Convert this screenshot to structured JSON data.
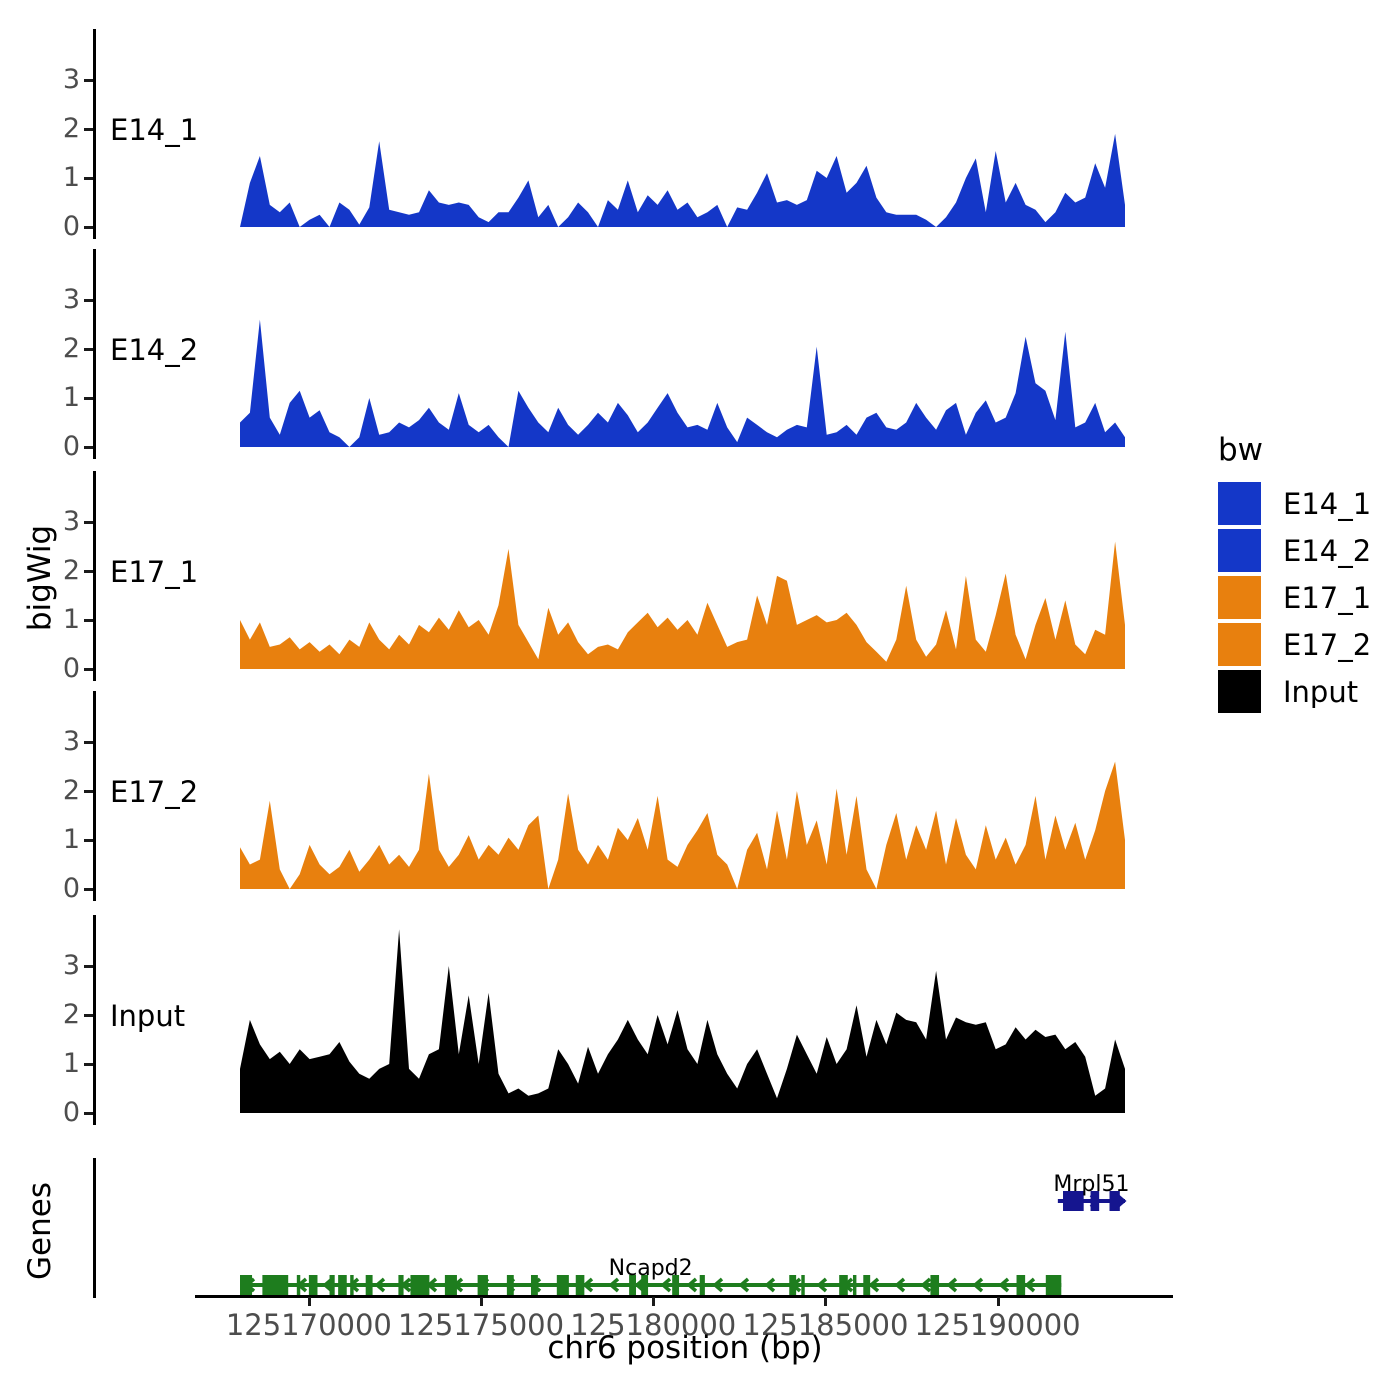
{
  "y_axis_title": "bigWig",
  "genes_axis_title": "Genes",
  "x_axis": {
    "title": "chr6 position (bp)",
    "ticks": [
      {
        "pos": 125170000,
        "label": "125170000"
      },
      {
        "pos": 125175000,
        "label": "125175000"
      },
      {
        "pos": 125180000,
        "label": "125180000"
      },
      {
        "pos": 125185000,
        "label": "125185000"
      },
      {
        "pos": 125190000,
        "label": "125190000"
      }
    ]
  },
  "legend": {
    "title": "bw",
    "entries": [
      {
        "label": "E14_1",
        "color": "#1437C8"
      },
      {
        "label": "E14_2",
        "color": "#1437C8"
      },
      {
        "label": "E17_1",
        "color": "#E8800E"
      },
      {
        "label": "E17_2",
        "color": "#E8800E"
      },
      {
        "label": "Input",
        "color": "#000000"
      }
    ]
  },
  "chart_data": {
    "type": "area",
    "region": {
      "chrom": "chr6",
      "start": 125168000,
      "end": 125193700
    },
    "ylim": [
      0,
      4
    ],
    "y_ticks": [
      0,
      1,
      2,
      3
    ],
    "grid": false,
    "legend_position": "right",
    "series": [
      {
        "name": "E14_1",
        "color": "#1437C8",
        "values": [
          0,
          0.9,
          1.45,
          0.45,
          0.3,
          0.5,
          0,
          0.15,
          0.25,
          0,
          0.5,
          0.35,
          0.05,
          0.4,
          1.75,
          0.35,
          0.3,
          0.25,
          0.3,
          0.75,
          0.5,
          0.45,
          0.5,
          0.45,
          0.2,
          0.1,
          0.3,
          0.3,
          0.6,
          0.95,
          0.2,
          0.45,
          0,
          0.2,
          0.5,
          0.3,
          0,
          0.55,
          0.35,
          0.95,
          0.3,
          0.65,
          0.45,
          0.75,
          0.35,
          0.5,
          0.2,
          0.3,
          0.45,
          0,
          0.4,
          0.35,
          0.7,
          1.1,
          0.5,
          0.55,
          0.45,
          0.55,
          1.15,
          1.0,
          1.45,
          0.7,
          0.9,
          1.25,
          0.6,
          0.3,
          0.25,
          0.25,
          0.25,
          0.15,
          0,
          0.2,
          0.5,
          1.0,
          1.4,
          0.3,
          1.55,
          0.5,
          0.9,
          0.45,
          0.35,
          0.1,
          0.3,
          0.7,
          0.5,
          0.6,
          1.3,
          0.8,
          1.9,
          0.45
        ]
      },
      {
        "name": "E14_2",
        "color": "#1437C8",
        "values": [
          0.5,
          0.7,
          2.6,
          0.6,
          0.25,
          0.9,
          1.15,
          0.6,
          0.75,
          0.3,
          0.2,
          0,
          0.2,
          1.0,
          0.25,
          0.3,
          0.5,
          0.4,
          0.55,
          0.8,
          0.5,
          0.35,
          1.1,
          0.45,
          0.3,
          0.45,
          0.2,
          0,
          1.15,
          0.8,
          0.5,
          0.3,
          0.8,
          0.45,
          0.25,
          0.45,
          0.7,
          0.5,
          0.9,
          0.65,
          0.3,
          0.5,
          0.8,
          1.1,
          0.7,
          0.4,
          0.45,
          0.35,
          0.9,
          0.4,
          0.1,
          0.6,
          0.45,
          0.3,
          0.2,
          0.35,
          0.45,
          0.4,
          2.05,
          0.25,
          0.3,
          0.45,
          0.25,
          0.6,
          0.7,
          0.4,
          0.35,
          0.5,
          0.9,
          0.6,
          0.35,
          0.75,
          0.9,
          0.25,
          0.7,
          0.95,
          0.5,
          0.6,
          1.1,
          2.25,
          1.3,
          1.15,
          0.55,
          2.35,
          0.4,
          0.5,
          0.9,
          0.3,
          0.5,
          0.2
        ]
      },
      {
        "name": "E17_1",
        "color": "#E8800E",
        "values": [
          1.0,
          0.6,
          0.95,
          0.45,
          0.5,
          0.65,
          0.4,
          0.55,
          0.35,
          0.5,
          0.3,
          0.6,
          0.45,
          0.95,
          0.6,
          0.4,
          0.7,
          0.5,
          0.9,
          0.75,
          1.05,
          0.8,
          1.2,
          0.85,
          1.0,
          0.7,
          1.3,
          2.45,
          0.9,
          0.55,
          0.2,
          1.25,
          0.7,
          0.95,
          0.55,
          0.3,
          0.45,
          0.5,
          0.4,
          0.75,
          0.95,
          1.15,
          0.85,
          1.05,
          0.8,
          1.0,
          0.7,
          1.35,
          0.9,
          0.45,
          0.55,
          0.6,
          1.5,
          0.9,
          1.9,
          1.8,
          0.9,
          1.0,
          1.1,
          0.95,
          1.0,
          1.15,
          0.9,
          0.55,
          0.35,
          0.15,
          0.6,
          1.7,
          0.6,
          0.25,
          0.5,
          1.2,
          0.4,
          1.9,
          0.6,
          0.35,
          1.1,
          1.95,
          0.7,
          0.2,
          0.9,
          1.45,
          0.6,
          1.4,
          0.5,
          0.3,
          0.8,
          0.7,
          2.6,
          0.9
        ]
      },
      {
        "name": "E17_2",
        "color": "#E8800E",
        "values": [
          0.85,
          0.5,
          0.6,
          1.8,
          0.4,
          0,
          0.3,
          0.9,
          0.5,
          0.3,
          0.45,
          0.8,
          0.35,
          0.6,
          0.9,
          0.5,
          0.7,
          0.45,
          0.8,
          2.35,
          0.8,
          0.45,
          0.7,
          1.1,
          0.6,
          0.9,
          0.7,
          1.05,
          0.8,
          1.3,
          1.5,
          0,
          0.6,
          1.95,
          0.8,
          0.5,
          0.9,
          0.6,
          1.25,
          1.0,
          1.45,
          0.8,
          1.9,
          0.6,
          0.45,
          0.9,
          1.2,
          1.55,
          0.7,
          0.5,
          0,
          0.8,
          1.15,
          0.4,
          1.6,
          0.6,
          2.0,
          0.9,
          1.4,
          0.5,
          2.05,
          0.7,
          1.9,
          0.4,
          0,
          0.9,
          1.55,
          0.6,
          1.3,
          0.8,
          1.6,
          0.5,
          1.45,
          0.7,
          0.4,
          1.3,
          0.6,
          1.05,
          0.5,
          0.9,
          1.9,
          0.6,
          1.5,
          0.8,
          1.35,
          0.6,
          1.2,
          2.0,
          2.6,
          1.0
        ]
      },
      {
        "name": "Input",
        "color": "#000000",
        "values": [
          0.9,
          1.9,
          1.4,
          1.1,
          1.25,
          1.0,
          1.3,
          1.1,
          1.15,
          1.2,
          1.45,
          1.05,
          0.8,
          0.7,
          0.9,
          1.0,
          3.75,
          0.9,
          0.7,
          1.2,
          1.3,
          3.0,
          1.2,
          2.4,
          1.0,
          2.45,
          0.8,
          0.4,
          0.5,
          0.35,
          0.4,
          0.5,
          1.3,
          1.0,
          0.6,
          1.35,
          0.8,
          1.2,
          1.5,
          1.9,
          1.5,
          1.2,
          2.0,
          1.4,
          2.1,
          1.3,
          1.0,
          1.9,
          1.2,
          0.8,
          0.5,
          1.0,
          1.3,
          0.8,
          0.3,
          0.9,
          1.6,
          1.2,
          0.8,
          1.55,
          1.0,
          1.3,
          2.2,
          1.15,
          1.9,
          1.4,
          2.05,
          1.9,
          1.85,
          1.5,
          2.9,
          1.5,
          1.95,
          1.85,
          1.8,
          1.85,
          1.3,
          1.4,
          1.75,
          1.5,
          1.7,
          1.55,
          1.6,
          1.3,
          1.45,
          1.15,
          0.35,
          0.5,
          1.5,
          0.9
        ]
      }
    ],
    "genes": [
      {
        "name": "Ncapd2",
        "strand": "-",
        "color": "#1E7D1E",
        "start": 125168000,
        "end": 125191850,
        "exons": [
          [
            125168000,
            125168350
          ],
          [
            125168650,
            125169400
          ],
          [
            125169650,
            125169750
          ],
          [
            125170000,
            125170250
          ],
          [
            125170600,
            125170750
          ],
          [
            125170850,
            125171100
          ],
          [
            125171200,
            125171300
          ],
          [
            125171650,
            125171850
          ],
          [
            125172600,
            125172750
          ],
          [
            125172950,
            125173500
          ],
          [
            125173950,
            125174300
          ],
          [
            125174900,
            125175200
          ],
          [
            125175750,
            125175950
          ],
          [
            125176450,
            125176650
          ],
          [
            125177200,
            125177550
          ],
          [
            125177750,
            125178000
          ],
          [
            125179300,
            125179500
          ],
          [
            125179650,
            125179850
          ],
          [
            125180550,
            125180750
          ],
          [
            125181350,
            125181500
          ],
          [
            125183950,
            125184150
          ],
          [
            125184300,
            125184400
          ],
          [
            125185400,
            125185650
          ],
          [
            125185800,
            125185900
          ],
          [
            125186100,
            125186300
          ],
          [
            125188050,
            125188300
          ],
          [
            125190550,
            125190800
          ],
          [
            125191400,
            125191850
          ]
        ]
      },
      {
        "name": "Mrpl51",
        "strand": "+",
        "color": "#15158F",
        "start": 125191750,
        "end": 125193700,
        "exons": [
          [
            125191900,
            125192500
          ],
          [
            125192700,
            125192950
          ],
          [
            125193250,
            125193550
          ]
        ]
      }
    ]
  }
}
